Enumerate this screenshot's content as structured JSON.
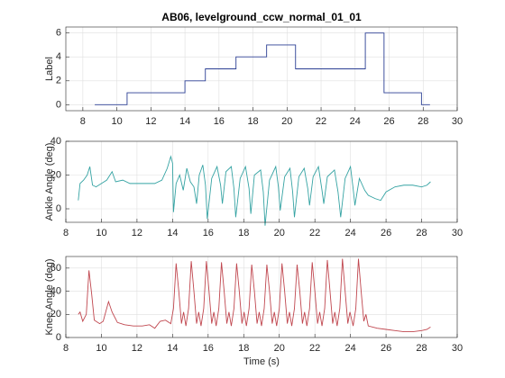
{
  "chart_data": [
    {
      "type": "line",
      "title": "AB06, levelground_ccw_normal_01_01",
      "ylabel": "Label",
      "color": "#2b3f94",
      "grid": true,
      "xlim": [
        7,
        30
      ],
      "xticks": [
        8,
        10,
        12,
        14,
        16,
        18,
        20,
        22,
        24,
        26,
        28,
        30
      ],
      "ylim": [
        -0.5,
        6.5
      ],
      "yticks": [
        0,
        2,
        4,
        6
      ],
      "x": [
        8.7,
        10.6,
        10.6,
        14,
        14,
        15.2,
        15.2,
        17,
        17,
        18.8,
        18.8,
        20.5,
        20.5,
        24.6,
        24.6,
        25.7,
        25.7,
        27.9,
        27.9,
        28.4
      ],
      "values": [
        0,
        0,
        1,
        1,
        2,
        2,
        3,
        3,
        4,
        4,
        5,
        5,
        3,
        3,
        6,
        6,
        1,
        1,
        0,
        0
      ]
    },
    {
      "type": "line",
      "ylabel": "Ankle Angle (deg)",
      "color": "#35a3a3",
      "grid": true,
      "xlim": [
        8,
        30
      ],
      "xticks": [
        8,
        10,
        12,
        14,
        16,
        18,
        20,
        22,
        24,
        26,
        28,
        30
      ],
      "ylim": [
        -8,
        40
      ],
      "yticks": [
        0,
        20,
        40
      ],
      "x": [
        8.7,
        8.8,
        9.0,
        9.2,
        9.35,
        9.5,
        9.7,
        10.0,
        10.3,
        10.6,
        10.8,
        11.2,
        11.6,
        12.0,
        12.5,
        13.0,
        13.4,
        13.7,
        13.9,
        14.0,
        14.05,
        14.2,
        14.4,
        14.6,
        14.8,
        15.0,
        15.2,
        15.35,
        15.5,
        15.7,
        15.85,
        15.95,
        16.2,
        16.5,
        16.7,
        16.8,
        17.0,
        17.3,
        17.45,
        17.55,
        17.8,
        18.1,
        18.3,
        18.4,
        18.6,
        18.95,
        19.1,
        19.2,
        19.45,
        19.8,
        19.95,
        20.05,
        20.3,
        20.6,
        20.75,
        20.85,
        21.1,
        21.4,
        21.6,
        21.7,
        21.9,
        22.2,
        22.4,
        22.5,
        22.7,
        23.1,
        23.3,
        23.45,
        23.7,
        24.0,
        24.15,
        24.25,
        24.5,
        24.8,
        25.0,
        25.4,
        25.7,
        26.0,
        26.5,
        27.0,
        27.5,
        28.0,
        28.3,
        28.5
      ],
      "values": [
        5,
        15,
        17,
        20,
        25,
        14,
        13,
        15,
        17,
        22,
        16,
        17,
        15,
        15,
        15,
        15,
        17,
        24,
        31,
        27,
        -2,
        15,
        20,
        11,
        24,
        16,
        13,
        3,
        20,
        26,
        14,
        -6,
        18,
        25,
        14,
        3,
        22,
        25,
        12,
        -5,
        18,
        25,
        12,
        -3,
        20,
        23,
        10,
        -10,
        17,
        25,
        13,
        -1,
        19,
        24,
        10,
        -5,
        19,
        24,
        12,
        2,
        19,
        25,
        11,
        3,
        19,
        23,
        10,
        -5,
        18,
        25,
        12,
        2,
        18,
        11,
        8,
        6,
        5,
        10,
        13,
        14,
        14,
        13,
        14,
        16
      ]
    },
    {
      "type": "line",
      "ylabel": "Knee Angle (deg)",
      "xlabel": "Time (s)",
      "color": "#c0474f",
      "grid": true,
      "xlim": [
        8,
        30
      ],
      "xticks": [
        8,
        10,
        12,
        14,
        16,
        18,
        20,
        22,
        24,
        26,
        28,
        30
      ],
      "ylim": [
        0,
        70
      ],
      "yticks": [
        0,
        20,
        40,
        60
      ],
      "x": [
        8.7,
        8.8,
        8.95,
        9.15,
        9.3,
        9.45,
        9.6,
        9.9,
        10.1,
        10.4,
        10.6,
        10.9,
        11.3,
        11.8,
        12.3,
        12.7,
        13.0,
        13.3,
        13.6,
        13.9,
        14.05,
        14.2,
        14.35,
        14.5,
        14.62,
        14.75,
        14.9,
        15.05,
        15.2,
        15.35,
        15.47,
        15.6,
        15.75,
        15.9,
        16.05,
        16.2,
        16.32,
        16.45,
        16.6,
        16.75,
        16.9,
        17.05,
        17.17,
        17.3,
        17.45,
        17.6,
        17.75,
        17.9,
        18.02,
        18.15,
        18.3,
        18.45,
        18.6,
        18.75,
        18.87,
        19.0,
        19.15,
        19.3,
        19.45,
        19.6,
        19.72,
        19.85,
        20.0,
        20.15,
        20.3,
        20.45,
        20.57,
        20.7,
        20.85,
        21.0,
        21.15,
        21.3,
        21.42,
        21.55,
        21.7,
        21.85,
        22.0,
        22.15,
        22.27,
        22.4,
        22.55,
        22.7,
        22.85,
        23.0,
        23.12,
        23.25,
        23.4,
        23.55,
        23.7,
        23.85,
        23.97,
        24.15,
        24.3,
        24.45,
        24.6,
        24.75,
        24.87,
        25.0,
        25.5,
        26.0,
        26.5,
        27.0,
        27.5,
        28.0,
        28.3,
        28.5
      ],
      "values": [
        20,
        22,
        14,
        20,
        58,
        38,
        15,
        12,
        14,
        31,
        22,
        13,
        11,
        10,
        10,
        11,
        8,
        14,
        15,
        12,
        25,
        64,
        40,
        12,
        22,
        10,
        25,
        66,
        40,
        12,
        22,
        10,
        25,
        66,
        40,
        12,
        22,
        10,
        25,
        65,
        40,
        12,
        22,
        10,
        25,
        64,
        40,
        12,
        22,
        10,
        25,
        63,
        40,
        12,
        22,
        10,
        25,
        63,
        40,
        12,
        22,
        10,
        25,
        64,
        40,
        12,
        22,
        10,
        25,
        63,
        40,
        12,
        22,
        10,
        25,
        65,
        40,
        12,
        22,
        10,
        25,
        67,
        40,
        12,
        22,
        10,
        25,
        68,
        40,
        12,
        22,
        10,
        25,
        68,
        40,
        14,
        20,
        10,
        8,
        7,
        6,
        5,
        5,
        6,
        7,
        9
      ]
    }
  ]
}
